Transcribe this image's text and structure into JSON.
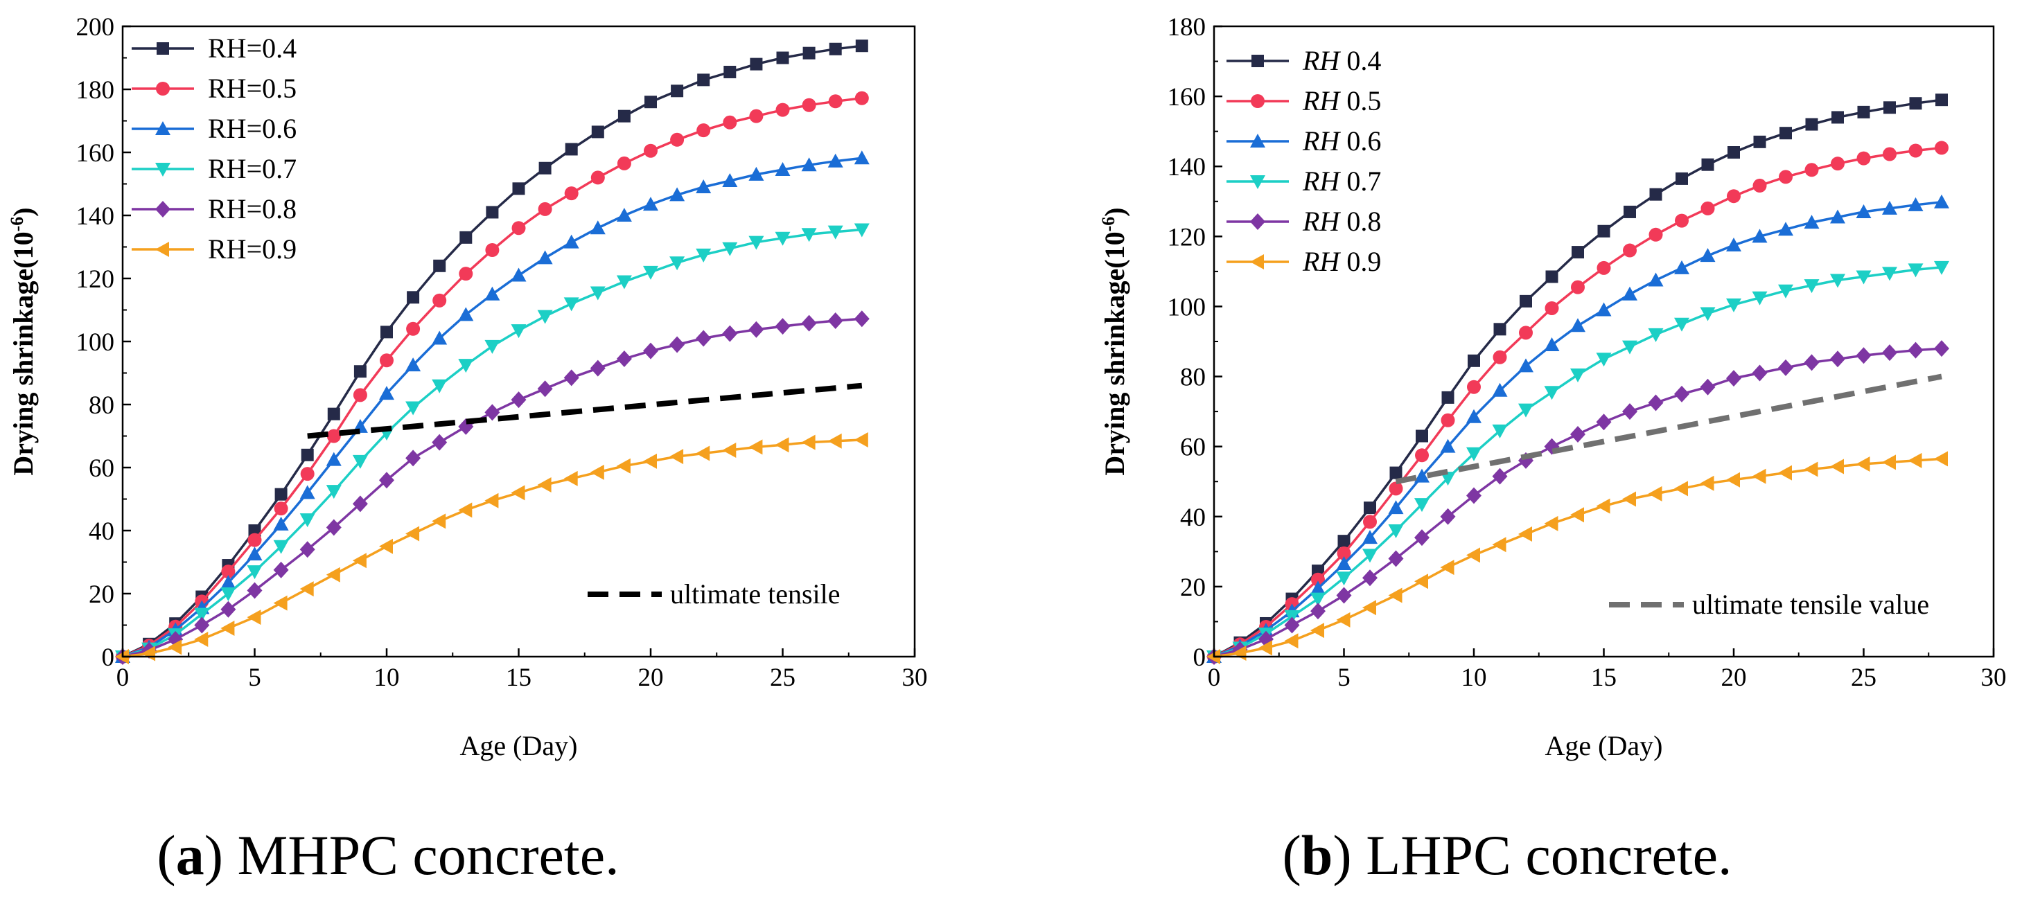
{
  "chart_data": [
    {
      "type": "line",
      "panel": "a",
      "caption_letter": "a",
      "caption_text": "MHPC concrete.",
      "xlabel": "Age (Day)",
      "ylabel_main": "Drying shrinkage(10",
      "ylabel_sup": "-6",
      "ylabel_close": ")",
      "xlim": [
        0,
        30
      ],
      "ylim": [
        0,
        200
      ],
      "xticks": [
        0,
        5,
        10,
        15,
        20,
        25,
        30
      ],
      "yticks": [
        0,
        20,
        40,
        60,
        80,
        100,
        120,
        140,
        160,
        180,
        200
      ],
      "legend_position": "top-left",
      "legend_italic_prefix": false,
      "x": [
        0,
        1,
        2,
        3,
        4,
        5,
        6,
        7,
        8,
        9,
        10,
        11,
        12,
        13,
        14,
        15,
        16,
        17,
        18,
        19,
        20,
        21,
        22,
        23,
        24,
        25,
        26,
        27,
        28
      ],
      "series": [
        {
          "name": "RH=0.4",
          "prefix": "RH=",
          "suffix": "0.4",
          "color": "#252a48",
          "marker": "square",
          "values": [
            0,
            4,
            10.5,
            19,
            29,
            40,
            51.5,
            64,
            77,
            90.5,
            103,
            114,
            124,
            133,
            141,
            148.5,
            155,
            161,
            166.5,
            171.5,
            176,
            179.5,
            183,
            185.5,
            188,
            190,
            191.5,
            192.8,
            193.8
          ]
        },
        {
          "name": "RH=0.5",
          "prefix": "RH=",
          "suffix": "0.5",
          "color": "#f23a58",
          "marker": "circle",
          "values": [
            0,
            3.5,
            9.5,
            17.5,
            27,
            37,
            47,
            58,
            70,
            83,
            94,
            104,
            113,
            121.5,
            129,
            136,
            142,
            147,
            152,
            156.5,
            160.5,
            164,
            167,
            169.5,
            171.5,
            173.5,
            175,
            176.2,
            177.2
          ]
        },
        {
          "name": "RH=0.6",
          "prefix": "RH=",
          "suffix": "0.6",
          "color": "#1a6dd6",
          "marker": "triangle-up",
          "values": [
            0,
            3,
            8.5,
            15.5,
            23.5,
            32.5,
            42,
            52,
            62.5,
            73,
            83.5,
            92.5,
            101,
            108.5,
            115,
            121,
            126.5,
            131.5,
            136,
            140,
            143.5,
            146.5,
            149,
            151,
            153,
            154.5,
            156,
            157.2,
            158.2
          ]
        },
        {
          "name": "RH=0.7",
          "prefix": "RH=",
          "suffix": "0.7",
          "color": "#1ccfc5",
          "marker": "triangle-down",
          "values": [
            0,
            2.5,
            7,
            13.5,
            20,
            27,
            35,
            43.5,
            52.5,
            62,
            71,
            79,
            86,
            92.5,
            98.5,
            103.5,
            108,
            112,
            115.5,
            119,
            122,
            125,
            127.5,
            129.5,
            131.5,
            132.8,
            134,
            134.8,
            135.5
          ]
        },
        {
          "name": "RH=0.8",
          "prefix": "RH=",
          "suffix": "0.8",
          "color": "#7e36a3",
          "marker": "diamond",
          "values": [
            0,
            2,
            5.5,
            10,
            15,
            21,
            27.5,
            34,
            41,
            48.5,
            56,
            63,
            68,
            73,
            77.5,
            81.5,
            85,
            88.5,
            91.5,
            94.5,
            97,
            99,
            101,
            102.5,
            103.8,
            104.8,
            105.8,
            106.6,
            107.2
          ]
        },
        {
          "name": "RH=0.9",
          "prefix": "RH=",
          "suffix": "0.9",
          "color": "#f5a01e",
          "marker": "triangle-left",
          "values": [
            0,
            1,
            3,
            5.5,
            9,
            12.5,
            17,
            21.5,
            26,
            30.5,
            35,
            39,
            43,
            46.5,
            49.5,
            52,
            54.5,
            56.5,
            58.5,
            60.5,
            62,
            63.5,
            64.5,
            65.5,
            66.5,
            67.2,
            68,
            68.4,
            68.8
          ]
        }
      ],
      "reference": {
        "label": "ultimate tensile",
        "color": "#000000",
        "x": [
          7,
          28
        ],
        "y": [
          70,
          86
        ],
        "legend_position": "bottom-right"
      }
    },
    {
      "type": "line",
      "panel": "b",
      "caption_letter": "b",
      "caption_text": "LHPC concrete.",
      "xlabel": "Age (Day)",
      "ylabel_main": "Drying shrinkage(10",
      "ylabel_sup": "-6",
      "ylabel_close": ")",
      "xlim": [
        0,
        30
      ],
      "ylim": [
        0,
        180
      ],
      "xticks": [
        0,
        5,
        10,
        15,
        20,
        25,
        30
      ],
      "yticks": [
        0,
        20,
        40,
        60,
        80,
        100,
        120,
        140,
        160,
        180
      ],
      "legend_position": "top-left",
      "legend_italic_prefix": true,
      "x": [
        0,
        1,
        2,
        3,
        4,
        5,
        6,
        7,
        8,
        9,
        10,
        11,
        12,
        13,
        14,
        15,
        16,
        17,
        18,
        19,
        20,
        21,
        22,
        23,
        24,
        25,
        26,
        27,
        28
      ],
      "series": [
        {
          "name": "RH 0.4",
          "prefix": "RH",
          "suffix": " 0.4",
          "color": "#252a48",
          "marker": "square",
          "values": [
            0,
            4,
            9.5,
            16.5,
            24.5,
            33,
            42.5,
            52.5,
            63,
            74,
            84.5,
            93.5,
            101.5,
            108.5,
            115.5,
            121.5,
            127,
            132,
            136.5,
            140.5,
            144,
            147,
            149.5,
            152,
            154,
            155.5,
            156.8,
            158,
            159
          ]
        },
        {
          "name": "RH 0.5",
          "prefix": "RH",
          "suffix": " 0.5",
          "color": "#f23a58",
          "marker": "circle",
          "values": [
            0,
            3.5,
            8.5,
            15,
            22,
            29.5,
            38.5,
            48,
            57.5,
            67.5,
            77,
            85.5,
            92.5,
            99.5,
            105.5,
            111,
            116,
            120.5,
            124.5,
            128,
            131.5,
            134.5,
            137,
            139,
            140.8,
            142.3,
            143.5,
            144.5,
            145.3
          ]
        },
        {
          "name": "RH 0.6",
          "prefix": "RH",
          "suffix": " 0.6",
          "color": "#1a6dd6",
          "marker": "triangle-up",
          "values": [
            0,
            3,
            7.5,
            13,
            19.5,
            26.5,
            34,
            42.5,
            51.5,
            60,
            68.5,
            76,
            83,
            89,
            94.5,
            99,
            103.5,
            107.5,
            111,
            114.5,
            117.5,
            120,
            122,
            124,
            125.5,
            127,
            128,
            129,
            129.8
          ]
        },
        {
          "name": "RH 0.7",
          "prefix": "RH",
          "suffix": " 0.7",
          "color": "#1ccfc5",
          "marker": "triangle-down",
          "values": [
            0,
            2.5,
            6.5,
            11.5,
            16.5,
            22.5,
            29,
            36,
            43.5,
            51,
            58,
            64.5,
            70.5,
            75.5,
            80.5,
            85,
            88.5,
            92,
            95,
            98,
            100.5,
            102.5,
            104.5,
            106,
            107.5,
            108.5,
            109.5,
            110.5,
            111.2
          ]
        },
        {
          "name": "RH 0.8",
          "prefix": "RH",
          "suffix": " 0.8",
          "color": "#7e36a3",
          "marker": "diamond",
          "values": [
            0,
            2,
            5,
            9,
            13,
            17.5,
            22.5,
            28,
            34,
            40,
            46,
            51.5,
            56,
            60,
            63.5,
            67,
            70,
            72.5,
            75,
            77,
            79.5,
            81,
            82.5,
            84,
            85,
            86,
            86.8,
            87.5,
            88
          ]
        },
        {
          "name": "RH 0.9",
          "prefix": "RH",
          "suffix": " 0.9",
          "color": "#f5a01e",
          "marker": "triangle-left",
          "values": [
            0,
            1,
            2.5,
            4.5,
            7.5,
            10.5,
            14,
            17.5,
            21.5,
            25.5,
            29,
            32,
            35,
            38,
            40.5,
            43,
            45,
            46.5,
            48,
            49.5,
            50.5,
            51.5,
            52.5,
            53.5,
            54.3,
            55,
            55.5,
            56,
            56.5
          ]
        }
      ],
      "reference": {
        "label": "ultimate tensile value",
        "color": "#707070",
        "x": [
          7,
          28
        ],
        "y": [
          50,
          80
        ],
        "legend_position": "bottom-right"
      }
    }
  ]
}
